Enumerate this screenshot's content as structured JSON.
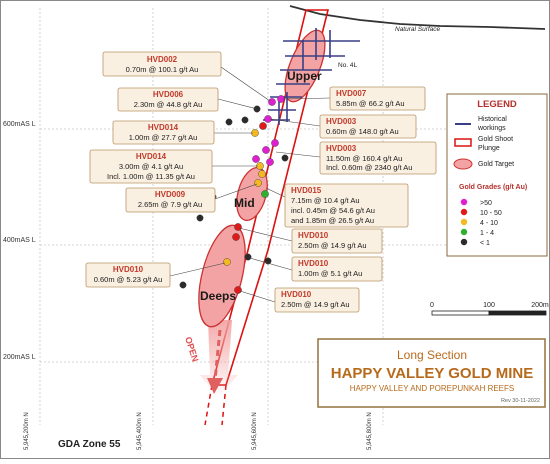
{
  "natural_surface": "Natural Surface",
  "lode_name": "No. 4L",
  "zones": {
    "upper": "Upper",
    "mid": "Mid",
    "deeps": "Deeps"
  },
  "open_label": "OPEN",
  "mas_labels": [
    "600mAS L",
    "400mAS L",
    "200mAS L"
  ],
  "northings": [
    "5,945,200m N",
    "5,945,400m N",
    "5,945,600m N",
    "5,945,800m N"
  ],
  "grid_zone": "GDA Zone 55",
  "scale_bar": {
    "ticks": [
      "0",
      "100",
      "200m"
    ]
  },
  "legend": {
    "title": "LEGEND",
    "items": [
      {
        "symbol": "historical",
        "label1": "Historical",
        "label2": "workings"
      },
      {
        "symbol": "plunge",
        "label1": "Gold Shoot",
        "label2": "Plunge"
      },
      {
        "symbol": "target",
        "label1": "Gold Target",
        "label2": ""
      }
    ],
    "grades_title": "Gold Grades (g/t Au)",
    "grades": [
      {
        "label": ">50",
        "color": "#e020d0"
      },
      {
        "label": "10 - 50",
        "color": "#e01a1a"
      },
      {
        "label": "4 - 10",
        "color": "#f5b820"
      },
      {
        "label": "1 - 4",
        "color": "#30b030"
      },
      {
        "label": "< 1",
        "color": "#2b2b2b"
      }
    ]
  },
  "title_box": {
    "subtitle": "Long Section",
    "title": "HAPPY VALLEY GOLD MINE",
    "reefs": "HAPPY VALLEY AND POREPUNKAH REEFS",
    "rev": "Rev 30-11-2022"
  },
  "intercepts": [
    {
      "id": "HVD002",
      "lines": [
        "0.70m @ 100.1 g/t Au"
      ]
    },
    {
      "id": "HVD006",
      "lines": [
        "2.30m @ 44.8 g/t Au"
      ]
    },
    {
      "id": "HVD007",
      "lines": [
        "5.85m @ 66.2 g/t Au"
      ]
    },
    {
      "id": "HVD003",
      "lines": [
        "0.60m @ 148.0 g/t Au"
      ]
    },
    {
      "id": "HVD014",
      "lines": [
        "1.00m @ 27.7 g/t Au"
      ]
    },
    {
      "id": "HVD003",
      "lines": [
        "11.50m @ 160.4 g/t Au",
        "Incl. 0.60m @ 2340 g/t Au"
      ]
    },
    {
      "id": "HVD014",
      "lines": [
        "3.00m @ 4.1 g/t Au",
        "Incl. 1.00m @ 11.35 g/t Au"
      ]
    },
    {
      "id": "HVD015",
      "lines": [
        "7.15m @ 10.4 g/t Au",
        "incl. 0.45m @ 54.6 g/t Au",
        "and 1.85m @ 26.5 g/t Au"
      ]
    },
    {
      "id": "HVD009",
      "lines": [
        "2.65m @ 7.9 g/t Au"
      ]
    },
    {
      "id": "HVD010",
      "lines": [
        "2.50m @ 14.9 g/t Au"
      ]
    },
    {
      "id": "HVD010",
      "lines": [
        "1.00m @ 5.1 g/t Au"
      ]
    },
    {
      "id": "HVD010",
      "lines": [
        "0.60m @ 5.23 g/t Au"
      ]
    },
    {
      "id": "HVD010",
      "lines": [
        "2.50m @ 14.9 g/t Au"
      ]
    }
  ]
}
